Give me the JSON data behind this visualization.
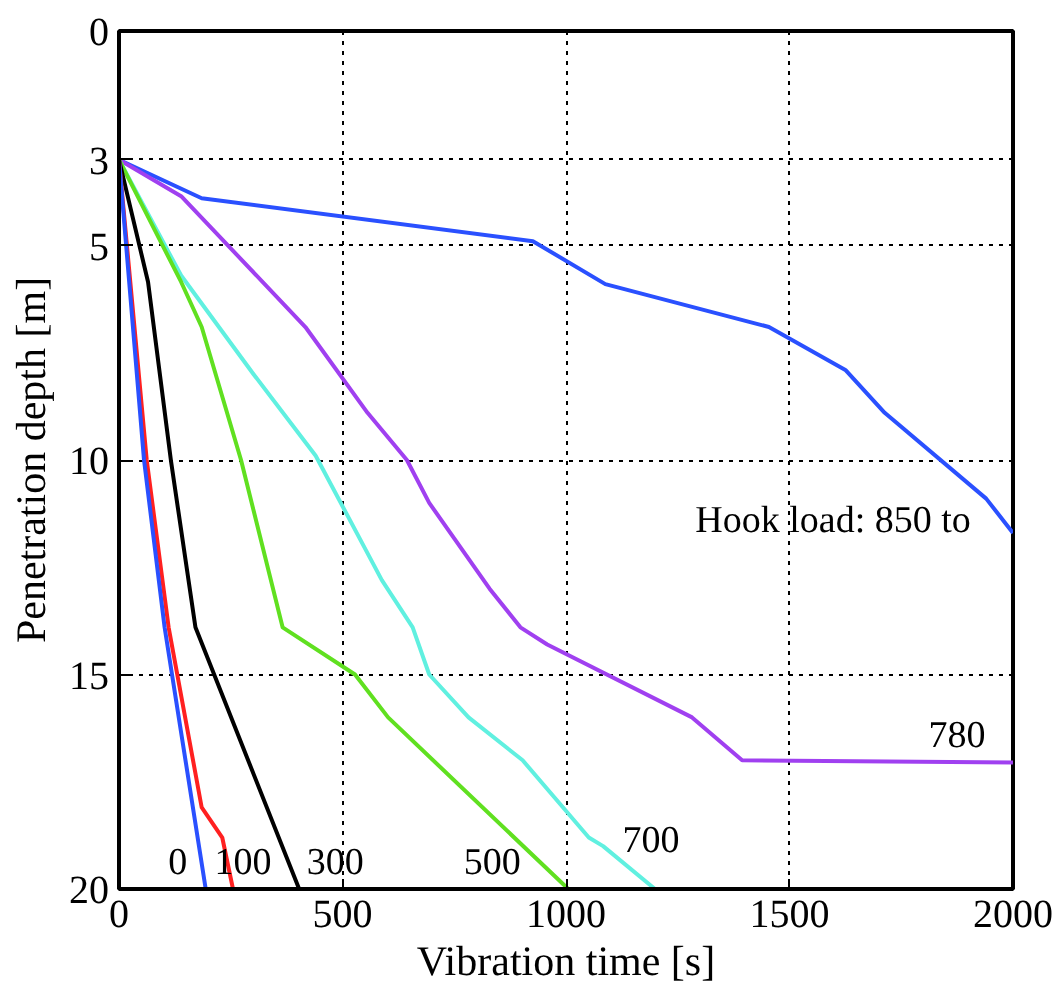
{
  "chart_data": {
    "type": "line",
    "xlabel": "Vibration time [s]",
    "ylabel": "Penetration depth [m]",
    "xlim": [
      0,
      2000
    ],
    "ylim": [
      20,
      0
    ],
    "xticks": [
      0,
      500,
      1000,
      1500,
      2000
    ],
    "yticks": [
      0,
      3,
      5,
      10,
      15,
      20
    ],
    "grid": true,
    "line_style": "solid",
    "series": [
      {
        "name": "Hook load: 850 to",
        "color": "#2a50ff",
        "x": [
          0,
          185,
          926,
          1088,
          1454,
          1625,
          1713,
          1940,
          2000
        ],
        "values": [
          3,
          3.9,
          4.9,
          5.9,
          6.9,
          7.9,
          8.9,
          10.9,
          11.7
        ]
      },
      {
        "name": "780",
        "color": "#a040f0",
        "x": [
          0,
          139,
          417,
          556,
          644,
          694,
          829,
          898,
          958,
          1282,
          1394,
          2000
        ],
        "values": [
          3,
          3.85,
          6.9,
          8.9,
          10,
          11,
          13,
          13.9,
          14.3,
          16,
          17,
          17.05
        ]
      },
      {
        "name": "700",
        "color": "#60f0e0",
        "x": [
          0,
          139,
          301,
          440,
          588,
          657,
          694,
          782,
          903,
          1051,
          1083,
          1199
        ],
        "values": [
          3,
          5.7,
          8,
          9.9,
          12.8,
          13.9,
          15,
          16,
          17,
          18.8,
          19,
          20
        ]
      },
      {
        "name": "500",
        "color": "#60e020",
        "x": [
          0,
          139,
          185,
          273,
          366,
          528,
          602,
          1005
        ],
        "values": [
          3,
          5.85,
          6.9,
          10,
          13.9,
          15,
          16,
          20
        ]
      },
      {
        "name": "300",
        "color": "#000000",
        "x": [
          0,
          65,
          116,
          171,
          403
        ],
        "values": [
          3,
          5.85,
          10,
          13.9,
          20
        ]
      },
      {
        "name": "100",
        "color": "#ff2020",
        "x": [
          0,
          62,
          111,
          185,
          231,
          255
        ],
        "values": [
          3,
          10,
          13.9,
          18.1,
          18.8,
          20
        ]
      },
      {
        "name": "0",
        "color": "#2a50ff",
        "x": [
          0,
          56,
          102,
          194
        ],
        "values": [
          3,
          10,
          13.9,
          20
        ]
      }
    ]
  }
}
